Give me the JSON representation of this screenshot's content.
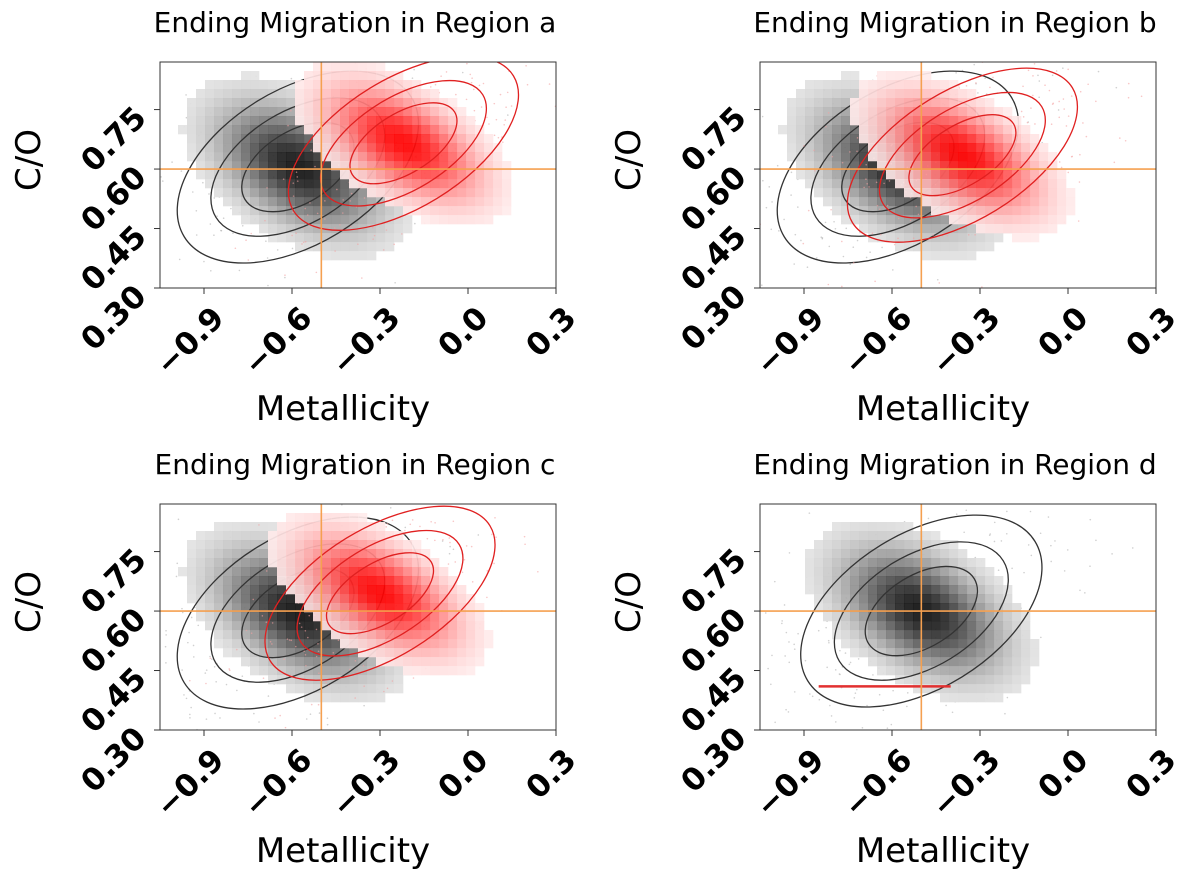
{
  "chart_data": [
    {
      "type": "heatmap",
      "title": "Ending Migration in Region a",
      "xlabel": "Metallicity",
      "ylabel": "C/O",
      "xlim": [
        -1.05,
        0.3
      ],
      "ylim": [
        0.3,
        0.87
      ],
      "xticks": [
        "−0.9",
        "−0.6",
        "−0.3",
        "0.0",
        "0.3"
      ],
      "yticks": [
        "0.30",
        "0.45",
        "0.60",
        "0.75"
      ],
      "xtick_values": [
        -0.9,
        -0.6,
        -0.3,
        0.0,
        0.3
      ],
      "ytick_values": [
        0.3,
        0.45,
        0.6,
        0.75
      ],
      "reference_lines": {
        "x": -0.5,
        "y": 0.6,
        "color": "#f5a050"
      },
      "series": [
        {
          "color": "#000000",
          "center": [
            -0.58,
            0.605
          ]
        },
        {
          "color": "#ff0000",
          "center": [
            -0.22,
            0.665
          ]
        }
      ]
    },
    {
      "type": "heatmap",
      "title": "Ending Migration in Region b",
      "xlabel": "Metallicity",
      "ylabel": "C/O",
      "xlim": [
        -1.05,
        0.3
      ],
      "ylim": [
        0.3,
        0.87
      ],
      "xticks": [
        "−0.9",
        "−0.6",
        "−0.3",
        "0.0",
        "0.3"
      ],
      "yticks": [
        "0.30",
        "0.45",
        "0.60",
        "0.75"
      ],
      "xtick_values": [
        -0.9,
        -0.6,
        -0.3,
        0.0,
        0.3
      ],
      "ytick_values": [
        0.3,
        0.45,
        0.6,
        0.75
      ],
      "reference_lines": {
        "x": -0.5,
        "y": 0.6,
        "color": "#f5a050"
      },
      "series": [
        {
          "color": "#000000",
          "center": [
            -0.58,
            0.605
          ]
        },
        {
          "color": "#ff0000",
          "center": [
            -0.36,
            0.635
          ]
        }
      ]
    },
    {
      "type": "heatmap",
      "title": "Ending Migration in Region c",
      "xlabel": "Metallicity",
      "ylabel": "C/O",
      "xlim": [
        -1.05,
        0.3
      ],
      "ylim": [
        0.3,
        0.87
      ],
      "xticks": [
        "−0.9",
        "−0.6",
        "−0.3",
        "0.0",
        "0.3"
      ],
      "yticks": [
        "0.30",
        "0.45",
        "0.60",
        "0.75"
      ],
      "xtick_values": [
        -0.9,
        -0.6,
        -0.3,
        0.0,
        0.3
      ],
      "ytick_values": [
        0.3,
        0.45,
        0.6,
        0.75
      ],
      "reference_lines": {
        "x": -0.5,
        "y": 0.6,
        "color": "#f5a050"
      },
      "series": [
        {
          "color": "#000000",
          "center": [
            -0.58,
            0.595
          ]
        },
        {
          "color": "#ff0000",
          "center": [
            -0.3,
            0.645
          ]
        }
      ]
    },
    {
      "type": "heatmap",
      "title": "Ending Migration in Region d",
      "xlabel": "Metallicity",
      "ylabel": "C/O",
      "xlim": [
        -1.05,
        0.3
      ],
      "ylim": [
        0.3,
        0.87
      ],
      "xticks": [
        "−0.9",
        "−0.6",
        "−0.3",
        "0.0",
        "0.3"
      ],
      "yticks": [
        "0.30",
        "0.45",
        "0.60",
        "0.75"
      ],
      "xtick_values": [
        -0.9,
        -0.6,
        -0.3,
        0.0,
        0.3
      ],
      "ytick_values": [
        0.3,
        0.45,
        0.6,
        0.75
      ],
      "reference_lines": {
        "x": -0.5,
        "y": 0.6,
        "color": "#f5a050"
      },
      "series": [
        {
          "color": "#000000",
          "center": [
            -0.5,
            0.6
          ]
        },
        {
          "color": "#ff0000",
          "line": {
            "x": [
              -0.85,
              -0.4
            ],
            "y": 0.41
          }
        }
      ]
    }
  ]
}
